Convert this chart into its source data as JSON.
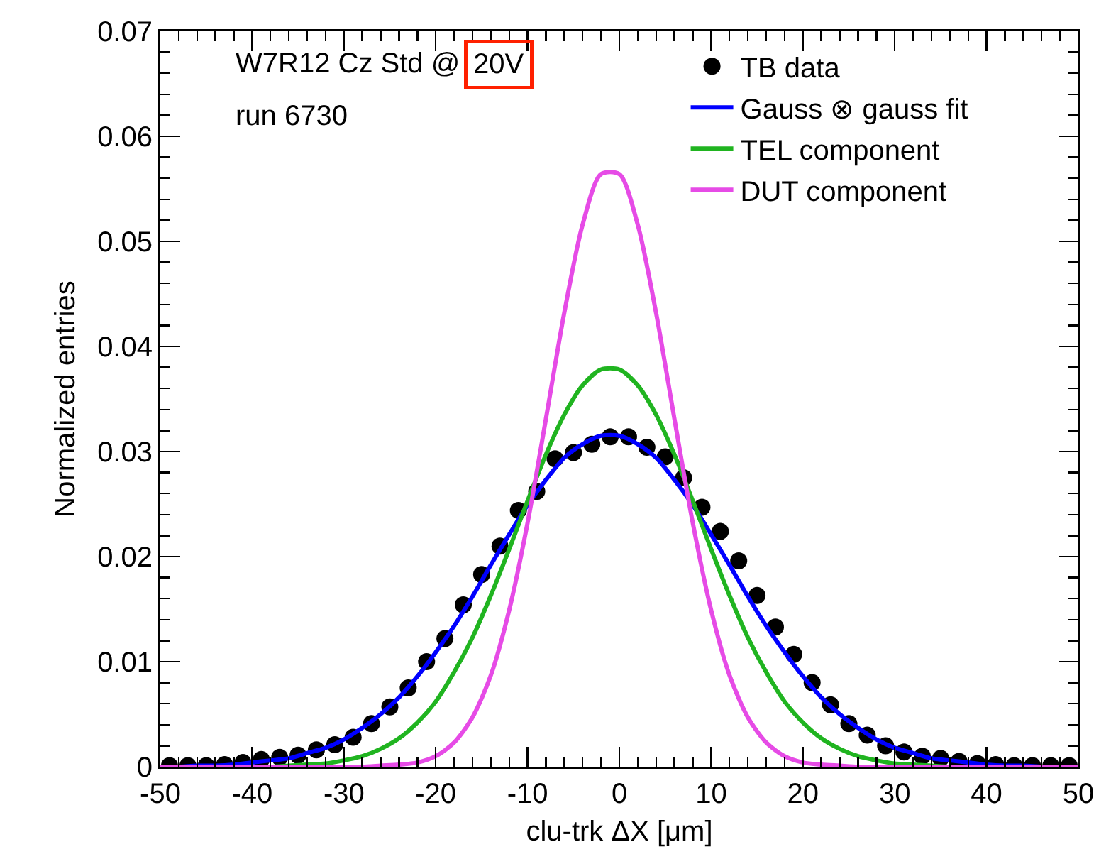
{
  "chart_data": {
    "type": "line",
    "xlabel": "clu-trk ΔX [μm]",
    "ylabel": "Normalized entries",
    "annotations": [
      "W7R12 Cz Std @",
      "20V",
      "run 6730"
    ],
    "xlim": [
      -50,
      50
    ],
    "xticks": [
      -50,
      -40,
      -30,
      -20,
      -10,
      0,
      10,
      20,
      30,
      40,
      50
    ],
    "ylim": [
      0,
      0.07
    ],
    "yticks": [
      0,
      0.01,
      0.02,
      0.03,
      0.04,
      0.05,
      0.06,
      0.07
    ],
    "grid": false,
    "legend": "top right",
    "series": [
      {
        "name": "TB data",
        "type": "scatter",
        "marker": "circle",
        "color": "#000000",
        "x": [
          -49,
          -47,
          -45,
          -43,
          -41,
          -39,
          -37,
          -35,
          -33,
          -31,
          -29,
          -27,
          -25,
          -23,
          -21,
          -19,
          -17,
          -15,
          -13,
          -11,
          -9,
          -7,
          -5,
          -3,
          -1,
          1,
          3,
          5,
          7,
          9,
          11,
          13,
          15,
          17,
          19,
          21,
          23,
          25,
          27,
          29,
          31,
          33,
          35,
          37,
          39,
          41,
          43,
          45,
          47,
          49
        ],
        "values": [
          0.0001,
          0.0001,
          0.0001,
          0.0002,
          0.0004,
          0.0007,
          0.0009,
          0.0011,
          0.0016,
          0.0021,
          0.0028,
          0.0041,
          0.0057,
          0.0075,
          0.01,
          0.0122,
          0.0154,
          0.0183,
          0.021,
          0.0244,
          0.0262,
          0.0293,
          0.0299,
          0.0307,
          0.0314,
          0.0314,
          0.0304,
          0.0295,
          0.0275,
          0.0247,
          0.0224,
          0.0196,
          0.0163,
          0.0133,
          0.0107,
          0.008,
          0.0059,
          0.0041,
          0.003,
          0.002,
          0.0014,
          0.001,
          0.0008,
          0.0005,
          0.0003,
          0.0002,
          0.0001,
          0.0001,
          0.0001,
          0.0001
        ]
      },
      {
        "name": "Gauss ⊗ gauss fit",
        "marker": "none",
        "color": "#0000ff",
        "x": [
          -50,
          -48,
          -46,
          -44,
          -42,
          -40,
          -38,
          -36,
          -34,
          -32,
          -30,
          -28,
          -26,
          -24,
          -22,
          -20,
          -18,
          -16,
          -14,
          -12,
          -10,
          -8,
          -6,
          -4,
          -2,
          0,
          2,
          4,
          6,
          8,
          10,
          12,
          14,
          16,
          18,
          20,
          22,
          24,
          26,
          28,
          30,
          32,
          34,
          36,
          38,
          40,
          42,
          44,
          46,
          48,
          50
        ],
        "values": [
          0,
          0,
          0.0001,
          0.0001,
          0.0002,
          0.0004,
          0.0006,
          0.0008,
          0.0013,
          0.0018,
          0.0026,
          0.0037,
          0.005,
          0.0066,
          0.0086,
          0.0109,
          0.0134,
          0.0162,
          0.0192,
          0.0221,
          0.0249,
          0.0273,
          0.0294,
          0.0307,
          0.0315,
          0.0315,
          0.0307,
          0.0294,
          0.0273,
          0.0249,
          0.0221,
          0.0192,
          0.0162,
          0.0134,
          0.0109,
          0.0086,
          0.0066,
          0.005,
          0.0037,
          0.0026,
          0.0018,
          0.0013,
          0.0008,
          0.0006,
          0.0004,
          0.0002,
          0.0001,
          0.0001,
          0,
          0,
          0
        ]
      },
      {
        "name": "TEL component",
        "marker": "none",
        "color": "#20b420",
        "x": [
          -40,
          -38,
          -36,
          -34,
          -32,
          -30,
          -28,
          -26,
          -24,
          -22,
          -20,
          -18,
          -16,
          -14,
          -12,
          -10,
          -8,
          -6,
          -4,
          -2,
          0,
          2,
          4,
          6,
          8,
          10,
          12,
          14,
          16,
          18,
          20,
          22,
          24,
          26,
          28,
          30,
          32,
          34,
          36,
          38
        ],
        "values": [
          0,
          0,
          0.0001,
          0.0002,
          0.0003,
          0.0006,
          0.001,
          0.0017,
          0.0027,
          0.0042,
          0.0062,
          0.009,
          0.0123,
          0.0163,
          0.0207,
          0.0253,
          0.0297,
          0.0335,
          0.0363,
          0.0378,
          0.0378,
          0.0363,
          0.0335,
          0.0297,
          0.0253,
          0.0207,
          0.0163,
          0.0123,
          0.009,
          0.0062,
          0.0042,
          0.0027,
          0.0017,
          0.001,
          0.0006,
          0.0003,
          0.0002,
          0.0001,
          0,
          0
        ]
      },
      {
        "name": "DUT component",
        "marker": "none",
        "color": "#e64be6",
        "x": [
          -50,
          -48,
          -46,
          -44,
          -42,
          -40,
          -38,
          -36,
          -34,
          -32,
          -30,
          -28,
          -26,
          -24,
          -22,
          -20,
          -18,
          -16,
          -14,
          -12,
          -10,
          -8,
          -6,
          -4,
          -2,
          0,
          2,
          4,
          6,
          8,
          10,
          12,
          14,
          16,
          18,
          20,
          22,
          24,
          26,
          28,
          30,
          32,
          34,
          36,
          38,
          40,
          42,
          44,
          46,
          48,
          50
        ],
        "values": [
          0,
          0,
          0,
          0,
          0,
          0,
          0,
          0,
          0,
          0,
          0,
          0,
          0.0001,
          0.0002,
          0.0004,
          0.001,
          0.0023,
          0.0047,
          0.0087,
          0.0149,
          0.0232,
          0.0331,
          0.0432,
          0.0516,
          0.0564,
          0.0564,
          0.0516,
          0.0432,
          0.0331,
          0.0232,
          0.0149,
          0.0087,
          0.0047,
          0.0023,
          0.001,
          0.0004,
          0.0002,
          0.0001,
          0,
          0,
          0,
          0,
          0,
          0,
          0,
          0,
          0,
          0,
          0,
          0,
          0
        ]
      }
    ]
  }
}
